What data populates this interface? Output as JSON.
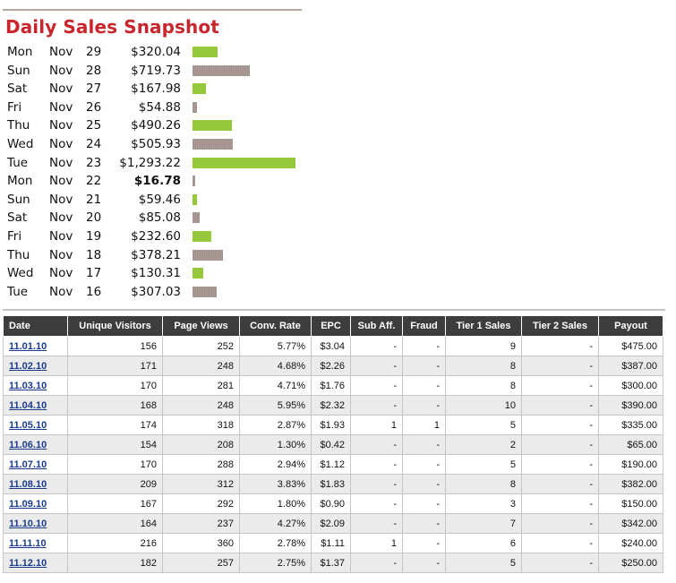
{
  "snapshot": {
    "title": "Daily Sales Snapshot",
    "colors": {
      "up": "#96c83c",
      "down": "#a2908b",
      "title": "#c8262c"
    },
    "max_amount": 1293.22,
    "rows": [
      {
        "day": "Mon",
        "month": "Nov",
        "date": "29",
        "amount": "$320.04",
        "value": 320.04,
        "trend": "up"
      },
      {
        "day": "Sun",
        "month": "Nov",
        "date": "28",
        "amount": "$719.73",
        "value": 719.73,
        "trend": "down"
      },
      {
        "day": "Sat",
        "month": "Nov",
        "date": "27",
        "amount": "$167.98",
        "value": 167.98,
        "trend": "up"
      },
      {
        "day": "Fri",
        "month": "Nov",
        "date": "26",
        "amount": "$54.88",
        "value": 54.88,
        "trend": "down"
      },
      {
        "day": "Thu",
        "month": "Nov",
        "date": "25",
        "amount": "$490.26",
        "value": 490.26,
        "trend": "up"
      },
      {
        "day": "Wed",
        "month": "Nov",
        "date": "24",
        "amount": "$505.93",
        "value": 505.93,
        "trend": "down"
      },
      {
        "day": "Tue",
        "month": "Nov",
        "date": "23",
        "amount": "$1,293.22",
        "value": 1293.22,
        "trend": "up"
      },
      {
        "day": "Mon",
        "month": "Nov",
        "date": "22",
        "amount": "$16.78",
        "value": 16.78,
        "trend": "down",
        "bold": true
      },
      {
        "day": "Sun",
        "month": "Nov",
        "date": "21",
        "amount": "$59.46",
        "value": 59.46,
        "trend": "up"
      },
      {
        "day": "Sat",
        "month": "Nov",
        "date": "20",
        "amount": "$85.08",
        "value": 85.08,
        "trend": "down"
      },
      {
        "day": "Fri",
        "month": "Nov",
        "date": "19",
        "amount": "$232.60",
        "value": 232.6,
        "trend": "up"
      },
      {
        "day": "Thu",
        "month": "Nov",
        "date": "18",
        "amount": "$378.21",
        "value": 378.21,
        "trend": "down"
      },
      {
        "day": "Wed",
        "month": "Nov",
        "date": "17",
        "amount": "$130.31",
        "value": 130.31,
        "trend": "up"
      },
      {
        "day": "Tue",
        "month": "Nov",
        "date": "16",
        "amount": "$307.03",
        "value": 307.03,
        "trend": "down"
      }
    ]
  },
  "table": {
    "headers": [
      "Date",
      "Unique Visitors",
      "Page Views",
      "Conv. Rate",
      "EPC",
      "Sub Aff.",
      "Fraud",
      "Tier 1 Sales",
      "Tier 2 Sales",
      "Payout"
    ],
    "rows": [
      [
        "11.01.10",
        "156",
        "252",
        "5.77%",
        "$3.04",
        "-",
        "-",
        "9",
        "-",
        "$475.00"
      ],
      [
        "11.02.10",
        "171",
        "248",
        "4.68%",
        "$2.26",
        "-",
        "-",
        "8",
        "-",
        "$387.00"
      ],
      [
        "11.03.10",
        "170",
        "281",
        "4.71%",
        "$1.76",
        "-",
        "-",
        "8",
        "-",
        "$300.00"
      ],
      [
        "11.04.10",
        "168",
        "248",
        "5.95%",
        "$2.32",
        "-",
        "-",
        "10",
        "-",
        "$390.00"
      ],
      [
        "11.05.10",
        "174",
        "318",
        "2.87%",
        "$1.93",
        "1",
        "1",
        "5",
        "-",
        "$335.00"
      ],
      [
        "11.06.10",
        "154",
        "208",
        "1.30%",
        "$0.42",
        "-",
        "-",
        "2",
        "-",
        "$65.00"
      ],
      [
        "11.07.10",
        "170",
        "288",
        "2.94%",
        "$1.12",
        "-",
        "-",
        "5",
        "-",
        "$190.00"
      ],
      [
        "11.08.10",
        "209",
        "312",
        "3.83%",
        "$1.83",
        "-",
        "-",
        "8",
        "-",
        "$382.00"
      ],
      [
        "11.09.10",
        "167",
        "292",
        "1.80%",
        "$0.90",
        "-",
        "-",
        "3",
        "-",
        "$150.00"
      ],
      [
        "11.10.10",
        "164",
        "237",
        "4.27%",
        "$2.09",
        "-",
        "-",
        "7",
        "-",
        "$342.00"
      ],
      [
        "11.11.10",
        "216",
        "360",
        "2.78%",
        "$1.11",
        "1",
        "-",
        "6",
        "-",
        "$240.00"
      ],
      [
        "11.12.10",
        "182",
        "257",
        "2.75%",
        "$1.37",
        "-",
        "-",
        "5",
        "-",
        "$250.00"
      ]
    ]
  }
}
